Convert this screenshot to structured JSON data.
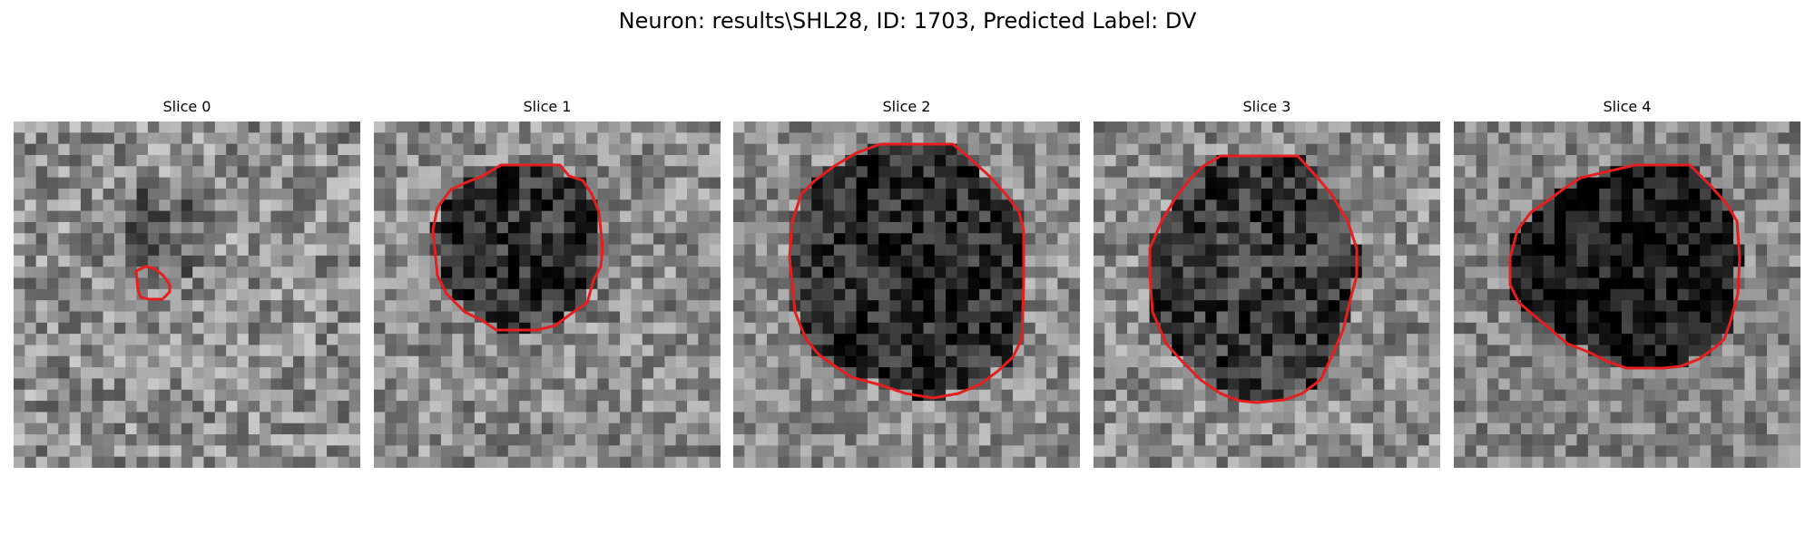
{
  "title": "Neuron: results\\SHL28, ID: 1703, Predicted Label: DV",
  "contour_color": "#e51f1f",
  "panels": [
    {
      "title": "Slice 0",
      "image": "noisy grayscale microscopy patch with a dark blob",
      "cell_brightness": 0.42,
      "background_brightness": 0.56,
      "noise": 0.3
    },
    {
      "title": "Slice 1",
      "image": "noisy grayscale microscopy patch with a dark round cell",
      "cell_brightness": 0.2,
      "background_brightness": 0.55,
      "noise": 0.28
    },
    {
      "title": "Slice 2",
      "image": "noisy grayscale microscopy patch with a dark round cell",
      "cell_brightness": 0.17,
      "background_brightness": 0.55,
      "noise": 0.26
    },
    {
      "title": "Slice 3",
      "image": "noisy grayscale microscopy patch with a dark round cell",
      "cell_brightness": 0.22,
      "background_brightness": 0.55,
      "noise": 0.28
    },
    {
      "title": "Slice 4",
      "image": "noisy grayscale microscopy patch with a dark round cell",
      "cell_brightness": 0.1,
      "background_brightness": 0.52,
      "noise": 0.24
    }
  ]
}
